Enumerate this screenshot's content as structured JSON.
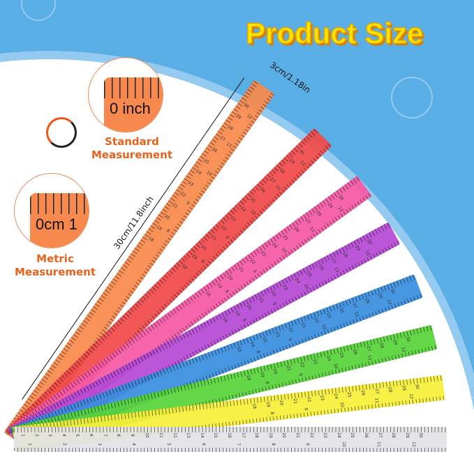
{
  "title": "Product Size",
  "standard": {
    "inset_label": "0 inch",
    "caption_line1": "Standard",
    "caption_line2": "Measurement"
  },
  "metric": {
    "inset_label": "0cm 1",
    "caption_line1": "Metric",
    "caption_line2": "Measurement"
  },
  "dimensions": {
    "width": "3cm/1.18in",
    "length": "30cm/11.8inch"
  },
  "icons": [
    "sync-arrows-icon"
  ],
  "rulers": [
    {
      "color": "#f88a4c",
      "angle": -54.6
    },
    {
      "color": "#f24a4a",
      "angle": -44.4
    },
    {
      "color": "#f65aa6",
      "angle": -35.9
    },
    {
      "color": "#b64ad6",
      "angle": -28.5
    },
    {
      "color": "#3a8fe0",
      "angle": -20.8
    },
    {
      "color": "#58d43a",
      "angle": -13.7
    },
    {
      "color": "#f6ef3a",
      "angle": -6.9
    },
    {
      "color": "#e4e4e8",
      "angle": 0
    }
  ],
  "cm_labels": [
    "1",
    "2",
    "3",
    "4",
    "5",
    "6",
    "7",
    "8",
    "9",
    "10",
    "11",
    "12",
    "13",
    "14",
    "15",
    "16",
    "17",
    "18",
    "19",
    "20",
    "21",
    "22",
    "23",
    "24",
    "25",
    "26",
    "27",
    "28",
    "29",
    "30"
  ],
  "inch_labels": [
    "1",
    "2",
    "3",
    "4",
    "5",
    "6",
    "7",
    "8",
    "9",
    "10",
    "11",
    "12"
  ]
}
